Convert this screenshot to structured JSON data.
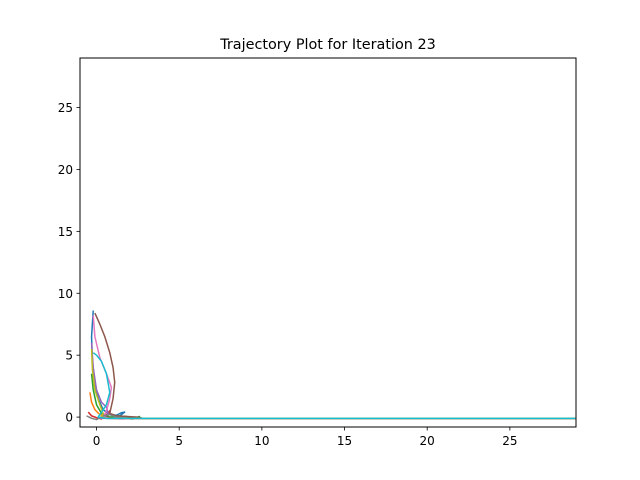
{
  "chart_data": {
    "type": "line",
    "title": "Trajectory Plot for Iteration 23",
    "xlabel": "",
    "ylabel": "",
    "xlim": [
      -1,
      29
    ],
    "ylim": [
      -0.8,
      29
    ],
    "xticks": [
      0,
      5,
      10,
      15,
      20,
      25
    ],
    "yticks": [
      0,
      5,
      10,
      15,
      20,
      25
    ],
    "grid": false,
    "series": [
      {
        "color": "#1f77b4",
        "x": [
          -0.2,
          -0.3,
          -0.25,
          -0.1,
          0.1,
          0.4,
          0.8,
          1.2,
          1.5,
          1.7,
          1.4,
          1.0,
          0.7,
          1.5,
          4,
          10,
          20,
          29
        ],
        "y": [
          8.6,
          6.5,
          4.5,
          2.8,
          1.5,
          0.6,
          0.2,
          0.15,
          0.35,
          0.4,
          0.1,
          -0.1,
          -0.1,
          -0.1,
          -0.1,
          -0.1,
          -0.1,
          -0.1
        ]
      },
      {
        "color": "#ff7f0e",
        "x": [
          -0.4,
          -0.3,
          -0.1,
          0.2,
          0.5,
          0.8,
          1.2,
          2,
          3,
          5,
          15,
          29
        ],
        "y": [
          2.0,
          1.2,
          0.6,
          0.2,
          0.05,
          -0.05,
          -0.1,
          -0.1,
          -0.1,
          -0.1,
          -0.1,
          -0.1
        ]
      },
      {
        "color": "#2ca02c",
        "x": [
          -0.3,
          -0.2,
          0.0,
          0.3,
          0.8,
          1.3,
          1.8,
          2.3,
          2.6,
          2.2,
          1.5,
          3,
          10,
          29
        ],
        "y": [
          3.5,
          2.2,
          1.0,
          0.3,
          0.0,
          0.1,
          0.05,
          -0.1,
          0.05,
          -0.15,
          -0.1,
          -0.1,
          -0.1,
          -0.1
        ]
      },
      {
        "color": "#d62728",
        "x": [
          -0.5,
          -0.3,
          0.0,
          0.3,
          0.6,
          0.8,
          0.5,
          1.0,
          2,
          8,
          29
        ],
        "y": [
          0.4,
          0.1,
          -0.05,
          -0.15,
          0.2,
          0.5,
          0.0,
          -0.1,
          -0.1,
          -0.1,
          -0.1
        ]
      },
      {
        "color": "#9467bd",
        "x": [
          -0.3,
          -0.2,
          0.0,
          0.3,
          0.6,
          0.7,
          0.5,
          0.2,
          1.0,
          5,
          29
        ],
        "y": [
          6.0,
          4.0,
          2.2,
          1.2,
          0.8,
          0.3,
          0.0,
          -0.1,
          -0.1,
          -0.1,
          -0.1
        ]
      },
      {
        "color": "#8c564b",
        "x": [
          -0.1,
          0.2,
          0.5,
          0.8,
          1.0,
          1.1,
          1.0,
          0.8,
          1.2,
          2.5,
          2.8,
          3.2,
          8,
          29
        ],
        "y": [
          8.4,
          7.5,
          6.5,
          5.2,
          4.0,
          2.8,
          1.5,
          0.3,
          0.1,
          0.0,
          -0.1,
          -0.1,
          -0.1,
          -0.1
        ]
      },
      {
        "color": "#e377c2",
        "x": [
          -0.2,
          -0.1,
          0.2,
          0.6,
          0.9,
          0.8,
          0.6,
          0.4,
          0.8,
          1.5,
          2.5,
          3.8,
          10,
          29
        ],
        "y": [
          8.2,
          6.5,
          4.8,
          3.5,
          2.4,
          1.5,
          0.5,
          0.0,
          -0.1,
          -0.15,
          -0.1,
          -0.1,
          -0.1,
          -0.1
        ]
      },
      {
        "color": "#7f7f7f",
        "x": [
          -0.6,
          -0.3,
          0.0,
          0.4,
          0.8,
          1.2,
          2.0,
          6,
          29
        ],
        "y": [
          0.1,
          -0.1,
          -0.2,
          0.1,
          0.2,
          0.0,
          -0.1,
          -0.1,
          -0.1
        ]
      },
      {
        "color": "#bcbd22",
        "x": [
          -0.3,
          -0.25,
          -0.1,
          0.2,
          0.4,
          0.3,
          0.6,
          1.5,
          4,
          29
        ],
        "y": [
          5.5,
          3.8,
          2.2,
          1.0,
          0.3,
          0.0,
          -0.1,
          -0.1,
          -0.1,
          -0.1
        ]
      },
      {
        "color": "#17becf",
        "x": [
          -0.2,
          0.0,
          0.3,
          0.6,
          0.8,
          0.6,
          0.3,
          0.1,
          0.6,
          2,
          10,
          20,
          29
        ],
        "y": [
          5.2,
          5.0,
          4.5,
          3.5,
          2.0,
          1.0,
          0.4,
          0.0,
          -0.1,
          -0.1,
          -0.1,
          -0.1,
          -0.1
        ]
      }
    ]
  }
}
